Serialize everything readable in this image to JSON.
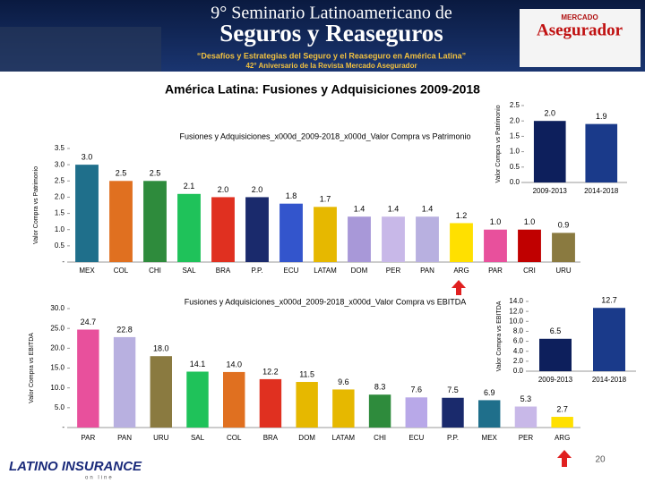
{
  "header": {
    "line1": "9° Seminario Latinoamericano de",
    "line2": "Seguros y Reaseguros",
    "tagline": "“Desafíos y Estrategias del Seguro y el Reaseguro en América Latina”",
    "anniversary": "42° Aniversario de la Revista Mercado Asegurador",
    "logo_top": "MERCADO",
    "logo": "Asegurador"
  },
  "title": "América Latina: Fusiones y Adquisiciones 2009-2018",
  "footer": {
    "logo": "LATINO INSURANCE",
    "logo_sub": "on line",
    "page": "20"
  },
  "chart_data": [
    {
      "type": "bar",
      "title": "Fusiones y Adquisiciones_x000d_2009-2018_x000d_Valor Compra vs Patrimonio",
      "ylabel": "Valor Compra vs Patrimonio",
      "categories": [
        "MEX",
        "COL",
        "CHI",
        "SAL",
        "BRA",
        "P.P.",
        "ECU",
        "LATAM",
        "DOM",
        "PER",
        "PAN",
        "ARG",
        "PAR",
        "CRI",
        "URU"
      ],
      "values": [
        3.0,
        2.5,
        2.5,
        2.1,
        2.0,
        2.0,
        1.8,
        1.7,
        1.4,
        1.4,
        1.4,
        1.2,
        1.0,
        1.0,
        0.9
      ],
      "value_labels": [
        "3.0",
        "2.5",
        "2.5",
        "2.1",
        "2.0",
        "2.0",
        "1.8",
        "1.7",
        "1.4",
        "1.4",
        "1.4",
        "1.2",
        "1.0",
        "1.0",
        "0.9"
      ],
      "colors": [
        "#1f6f8b",
        "#e07020",
        "#2e8b3c",
        "#1fc25a",
        "#e03020",
        "#1a2a6c",
        "#3355cc",
        "#e6b800",
        "#a898d8",
        "#c8b8e8",
        "#b8b0e0",
        "#ffe000",
        "#e8509c",
        "#c00000",
        "#8a7a40"
      ],
      "ylim": [
        0,
        3.5
      ],
      "yticks": [
        {
          "value": 0,
          "label": "-"
        },
        0.5,
        {
          "value": 1,
          "label": "1.0"
        },
        1.5,
        {
          "value": 2,
          "label": "2.0"
        },
        2.5,
        {
          "value": 3,
          "label": "3.0"
        },
        3.5
      ]
    },
    {
      "type": "bar",
      "ylabel": "Valor Compra vs Patrimonio",
      "categories": [
        "2009-2013",
        "2014-2018"
      ],
      "values": [
        2.0,
        1.9
      ],
      "value_labels": [
        "2.0",
        "1.9"
      ],
      "colors": [
        "#0d1f5c",
        "#1a3a8a"
      ],
      "ylim": [
        0,
        2.5
      ],
      "yticks": [
        {
          "value": 0,
          "label": "0.0"
        },
        0.5,
        {
          "value": 1,
          "label": "1.0"
        },
        1.5,
        {
          "value": 2,
          "label": "2.0"
        },
        2.5
      ]
    },
    {
      "type": "bar",
      "title": "Fusiones y Adquisiciones_x000d_2009-2018_x000d_Valor Compra vs EBITDA",
      "ylabel": "Valor Compra vs EBITDA",
      "categories": [
        "PAR",
        "PAN",
        "URU",
        "SAL",
        "COL",
        "BRA",
        "DOM",
        "LATAM",
        "CHI",
        "ECU",
        "P.P.",
        "MEX",
        "PER",
        "ARG"
      ],
      "values": [
        24.7,
        22.8,
        18.0,
        14.1,
        14.0,
        12.2,
        11.5,
        9.6,
        8.3,
        7.6,
        7.5,
        6.9,
        5.3,
        2.7
      ],
      "value_labels": [
        "24.7",
        "22.8",
        "18.0",
        "14.1",
        "14.0",
        "12.2",
        "11.5",
        "9.6",
        "8.3",
        "7.6",
        "7.5",
        "6.9",
        "5.3",
        "2.7"
      ],
      "colors": [
        "#e8509c",
        "#b8b0e0",
        "#8a7a40",
        "#1fc25a",
        "#e07020",
        "#e03020",
        "#e6b800",
        "#e6b800",
        "#2e8b3c",
        "#b8a8e8",
        "#1a2a6c",
        "#1f6f8b",
        "#c8b8e8",
        "#ffe000"
      ],
      "ylim": [
        0,
        30
      ],
      "yticks": [
        {
          "value": 0,
          "label": "-"
        },
        {
          "value": 5,
          "label": "5.0"
        },
        {
          "value": 10,
          "label": "10.0"
        },
        {
          "value": 15,
          "label": "15.0"
        },
        {
          "value": 20,
          "label": "20.0"
        },
        {
          "value": 25,
          "label": "25.0"
        },
        {
          "value": 30,
          "label": "30.0"
        }
      ]
    },
    {
      "type": "bar",
      "ylabel": "Valor Compra vs EBITDA",
      "categories": [
        "2009-2013",
        "2014-2018"
      ],
      "values": [
        6.5,
        12.7
      ],
      "value_labels": [
        "6.5",
        "12.7"
      ],
      "colors": [
        "#0d1f5c",
        "#1a3a8a"
      ],
      "ylim": [
        0,
        14
      ],
      "yticks": [
        {
          "value": 0,
          "label": "0.0"
        },
        {
          "value": 2,
          "label": "2.0"
        },
        {
          "value": 4,
          "label": "4.0"
        },
        {
          "value": 6,
          "label": "6.0"
        },
        {
          "value": 8,
          "label": "8.0"
        },
        {
          "value": 10,
          "label": "10.0"
        },
        {
          "value": 12,
          "label": "12.0"
        },
        {
          "value": 14,
          "label": "14.0"
        }
      ]
    }
  ]
}
